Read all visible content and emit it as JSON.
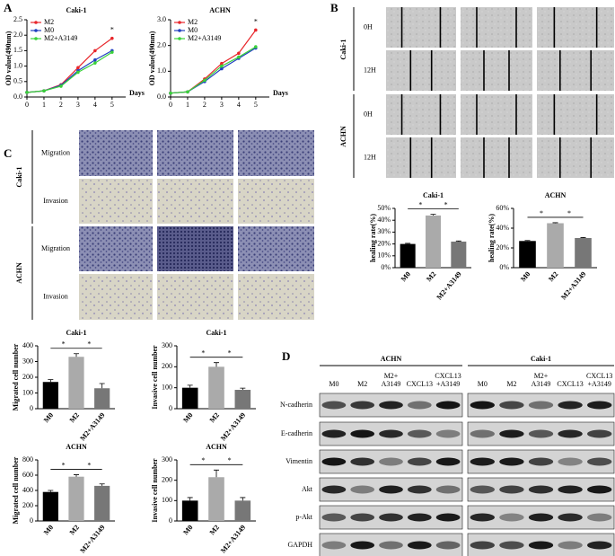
{
  "panel_labels": [
    "A",
    "B",
    "C",
    "D"
  ],
  "scratch": {
    "groups": [
      "Caki-1",
      "ACHN"
    ],
    "times": [
      "0H",
      "12H",
      "0H",
      "12H"
    ]
  },
  "transwell": {
    "groups": [
      "Caki-1",
      "ACHN"
    ],
    "rows": [
      "Migration",
      "Invasion",
      "Migration",
      "Invasion"
    ]
  },
  "western": {
    "groups": [
      {
        "name": "ACHN",
        "lanes": [
          [
            "M0"
          ],
          [
            "M2"
          ],
          [
            "M2+",
            "A3149"
          ],
          [
            "CXCL13"
          ],
          [
            "CXCL13",
            "+A3149"
          ]
        ]
      },
      {
        "name": "Caki-1",
        "lanes": [
          [
            "M0"
          ],
          [
            "M2"
          ],
          [
            "M2+",
            "A3149"
          ],
          [
            "CXCL13"
          ],
          [
            "CXCL13",
            "+A3149"
          ]
        ]
      }
    ],
    "proteins": [
      "N-cadherin",
      "E-cadherin",
      "Vimentin",
      "Akt",
      "p-Akt",
      "GAPDH"
    ]
  },
  "chart_data": [
    {
      "type": "line",
      "title": "Caki-1",
      "xlabel": "Days",
      "ylabel": "OD value(490nm)",
      "x": [
        0,
        1,
        2,
        3,
        4,
        5
      ],
      "xlim": [
        0,
        5.8
      ],
      "xticks": [
        0,
        1,
        2,
        3,
        4,
        5
      ],
      "ylim": [
        0,
        2.5
      ],
      "yticks": [
        {
          "value": 0,
          "label": "0.0"
        },
        {
          "value": 0.5,
          "label": "0.5"
        },
        {
          "value": 1,
          "label": "1.0"
        },
        {
          "value": 1.5,
          "label": "1.5"
        },
        {
          "value": 2,
          "label": "2.0"
        },
        {
          "value": 2.5,
          "label": "2.5"
        }
      ],
      "annotations": [
        {
          "text": "*",
          "x": 5
        }
      ],
      "series": [
        {
          "name": "M2",
          "color": "#e8262b",
          "values": [
            0.15,
            0.2,
            0.4,
            0.95,
            1.5,
            1.9
          ]
        },
        {
          "name": "M0",
          "color": "#1f3fbf",
          "values": [
            0.15,
            0.2,
            0.38,
            0.85,
            1.2,
            1.5
          ]
        },
        {
          "name": "M2+A3149",
          "color": "#3ad13a",
          "values": [
            0.15,
            0.2,
            0.35,
            0.8,
            1.1,
            1.45
          ]
        }
      ]
    },
    {
      "type": "line",
      "title": "ACHN",
      "xlabel": "Days",
      "ylabel": "OD value(490nm)",
      "x": [
        0,
        1,
        2,
        3,
        4,
        5
      ],
      "xlim": [
        0,
        5.8
      ],
      "xticks": [
        0,
        1,
        2,
        3,
        4,
        5
      ],
      "ylim": [
        0,
        3
      ],
      "yticks": [
        {
          "value": 0,
          "label": "0.0"
        },
        {
          "value": 1,
          "label": "1.0"
        },
        {
          "value": 2,
          "label": "2.0"
        },
        {
          "value": 3,
          "label": "3.0"
        }
      ],
      "annotations": [
        {
          "text": "*",
          "x": 5
        }
      ],
      "series": [
        {
          "name": "M2",
          "color": "#e8262b",
          "values": [
            0.15,
            0.2,
            0.7,
            1.3,
            1.7,
            2.6
          ]
        },
        {
          "name": "M0",
          "color": "#1f3fbf",
          "values": [
            0.15,
            0.2,
            0.6,
            1.1,
            1.5,
            1.9
          ]
        },
        {
          "name": "M2+A3149",
          "color": "#3ad13a",
          "values": [
            0.15,
            0.2,
            0.65,
            1.2,
            1.55,
            1.95
          ]
        }
      ]
    },
    {
      "type": "bar",
      "title": "Caki-1",
      "ylabel": "healing rate(%)",
      "categories": [
        "M0",
        "M2",
        "M2+A3149"
      ],
      "values": [
        20,
        44,
        22
      ],
      "errors": [
        0.5,
        1,
        0.5
      ],
      "colors": [
        "#000000",
        "#aaaaaa",
        "#777777"
      ],
      "ylim": [
        0,
        50
      ],
      "yticks": [
        {
          "value": 0,
          "label": "0%"
        },
        {
          "value": 10,
          "label": "10%"
        },
        {
          "value": 20,
          "label": "20%"
        },
        {
          "value": 30,
          "label": "30%"
        },
        {
          "value": 40,
          "label": "40%"
        },
        {
          "value": 50,
          "label": "50%"
        }
      ],
      "annotations": [
        "*",
        "*"
      ]
    },
    {
      "type": "bar",
      "title": "ACHN",
      "ylabel": "healing rate(%)",
      "categories": [
        "M0",
        "M2",
        "M2+A3149"
      ],
      "values": [
        27,
        45,
        30
      ],
      "errors": [
        0.5,
        0.5,
        0.5
      ],
      "colors": [
        "#000000",
        "#aaaaaa",
        "#777777"
      ],
      "ylim": [
        0,
        60
      ],
      "yticks": [
        {
          "value": 0,
          "label": "0%"
        },
        {
          "value": 20,
          "label": "20%"
        },
        {
          "value": 40,
          "label": "40%"
        },
        {
          "value": 60,
          "label": "60%"
        }
      ],
      "annotations": [
        "*",
        "*"
      ]
    },
    {
      "type": "bar",
      "title": "Caki-1",
      "ylabel": "Migrated cell number",
      "categories": [
        "M0",
        "M2",
        "M2+A3149"
      ],
      "values": [
        170,
        330,
        130
      ],
      "errors": [
        15,
        20,
        30
      ],
      "colors": [
        "#000000",
        "#aaaaaa",
        "#777777"
      ],
      "ylim": [
        0,
        400
      ],
      "yticks": [
        0,
        100,
        200,
        300,
        400
      ],
      "annotations": [
        "*",
        "*"
      ]
    },
    {
      "type": "bar",
      "title": "Caki-1",
      "ylabel": "Invasive cell number",
      "categories": [
        "M0",
        "M2",
        "M2+A3149"
      ],
      "values": [
        100,
        200,
        90
      ],
      "errors": [
        12,
        20,
        8
      ],
      "colors": [
        "#000000",
        "#aaaaaa",
        "#777777"
      ],
      "ylim": [
        0,
        300
      ],
      "yticks": [
        0,
        100,
        200,
        300
      ],
      "annotations": [
        "*",
        "*"
      ]
    },
    {
      "type": "bar",
      "title": "ACHN",
      "ylabel": "Migrated cell number",
      "categories": [
        "M0",
        "M2",
        "M2+A3149"
      ],
      "values": [
        380,
        580,
        460
      ],
      "errors": [
        20,
        25,
        25
      ],
      "colors": [
        "#000000",
        "#aaaaaa",
        "#777777"
      ],
      "ylim": [
        0,
        800
      ],
      "yticks": [
        0,
        200,
        400,
        600,
        800
      ],
      "annotations": [
        "*",
        "*"
      ]
    },
    {
      "type": "bar",
      "title": "ACHN",
      "ylabel": "Invasive cell number",
      "categories": [
        "M0",
        "M2",
        "M2+A3149"
      ],
      "values": [
        100,
        215,
        100
      ],
      "errors": [
        15,
        35,
        15
      ],
      "colors": [
        "#000000",
        "#aaaaaa",
        "#777777"
      ],
      "ylim": [
        0,
        300
      ],
      "yticks": [
        0,
        100,
        200,
        300
      ],
      "annotations": [
        "*",
        "*"
      ]
    }
  ]
}
